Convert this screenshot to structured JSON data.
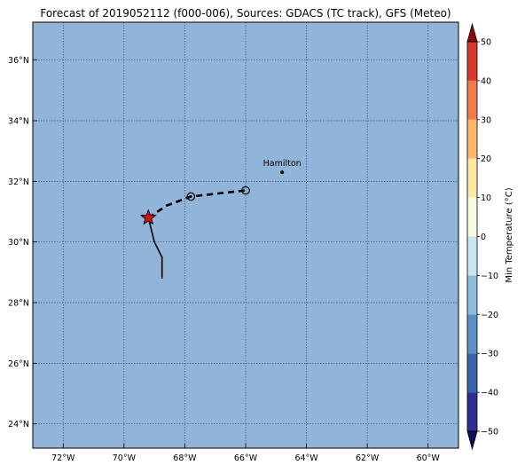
{
  "title": "Forecast of 2019052112 (f000-006), Sources: GDACS (TC track), GFS (Meteo)",
  "map": {
    "lon_range": [
      -73.0,
      -59.0
    ],
    "lat_range": [
      23.2,
      37.25
    ],
    "grid": true,
    "x_ticks": [
      {
        "value": -72,
        "label": "72°W"
      },
      {
        "value": -70,
        "label": "70°W"
      },
      {
        "value": -68,
        "label": "68°W"
      },
      {
        "value": -66,
        "label": "66°W"
      },
      {
        "value": -64,
        "label": "64°W"
      },
      {
        "value": -62,
        "label": "62°W"
      },
      {
        "value": -60,
        "label": "60°W"
      }
    ],
    "y_ticks": [
      {
        "value": 24,
        "label": "24°N"
      },
      {
        "value": 26,
        "label": "26°N"
      },
      {
        "value": 28,
        "label": "28°N"
      },
      {
        "value": 30,
        "label": "30°N"
      },
      {
        "value": 32,
        "label": "32°N"
      },
      {
        "value": 34,
        "label": "34°N"
      },
      {
        "value": 36,
        "label": "36°N"
      }
    ],
    "ocean_color": "#91b4d9",
    "past_track": [
      {
        "lon": -69.2,
        "lat": 30.8
      },
      {
        "lon": -69.0,
        "lat": 30.0
      },
      {
        "lon": -68.75,
        "lat": 29.5
      },
      {
        "lon": -68.75,
        "lat": 28.8
      }
    ],
    "forecast_track": [
      {
        "lon": -69.2,
        "lat": 30.8
      },
      {
        "lon": -68.6,
        "lat": 31.2
      },
      {
        "lon": -67.8,
        "lat": 31.5
      },
      {
        "lon": -66.0,
        "lat": 31.7
      }
    ],
    "current_position": {
      "lon": -69.2,
      "lat": 30.8,
      "color": "#dd1111"
    },
    "forecast_points": [
      {
        "lon": -67.8,
        "lat": 31.5,
        "marker": "circle-dot"
      },
      {
        "lon": -66.0,
        "lat": 31.7,
        "marker": "circle"
      }
    ],
    "city": {
      "name": "Hamilton",
      "lon": -64.8,
      "lat": 32.3
    }
  },
  "colorbar": {
    "label": "Min Temperature (°C)",
    "levels": [
      -50,
      -40,
      -30,
      -20,
      -10,
      0,
      10,
      20,
      30,
      40,
      50
    ],
    "tick_labels": [
      "−50",
      "−40",
      "−30",
      "−20",
      "−10",
      "0",
      "10",
      "20",
      "30",
      "40",
      "50"
    ],
    "colors": [
      "#2b2f91",
      "#3a62a8",
      "#5c8fc2",
      "#8dbdda",
      "#c7e6f0",
      "#f4fbe0",
      "#fee9a4",
      "#fdb86c",
      "#f17c4a",
      "#d63a2e",
      "#a50026"
    ],
    "under_color": "#11115a",
    "over_color": "#8a0d0d"
  }
}
